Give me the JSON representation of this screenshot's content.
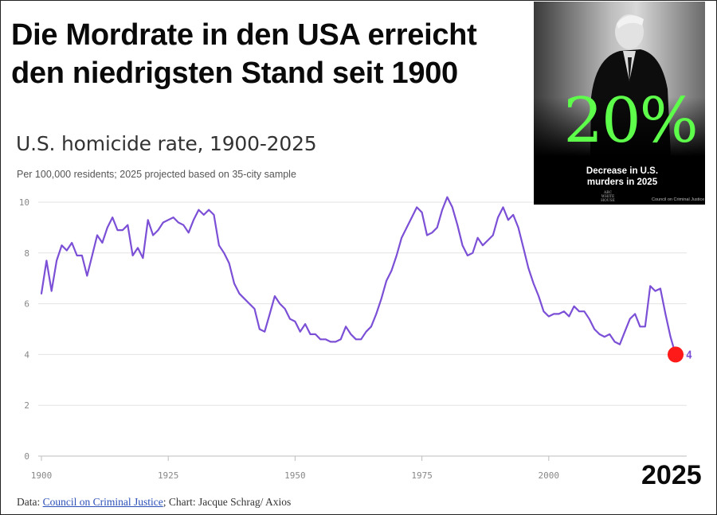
{
  "headline": {
    "line1": "Die Mordrate in den USA erreicht",
    "line2": "den niedrigsten Stand seit 1900"
  },
  "inset": {
    "percent": "20%",
    "caption_line1": "Decrease in U.S.",
    "caption_line2": "murders in 2025",
    "logo_line1": "ABC",
    "logo_line2": "WHITE HOUSE",
    "credit": "Council on Criminal Justice",
    "percent_color": "#5dff4a"
  },
  "year_callout": "2025",
  "footer": {
    "prefix": "Data: ",
    "source_link": "Council on Criminal Justice",
    "suffix": "; Chart: Jacque Schrag/ Axios"
  },
  "chart_data": {
    "type": "line",
    "title": "U.S. homicide rate, 1900-2025",
    "subtitle": "Per 100,000 residents; 2025 projected based on 35-city sample",
    "xlabel": "",
    "ylabel": "",
    "xlim": [
      1900,
      2025
    ],
    "ylim": [
      0,
      10
    ],
    "x_ticks": [
      1900,
      1925,
      1950,
      1975,
      2000
    ],
    "y_ticks": [
      0,
      2,
      4,
      6,
      8,
      10
    ],
    "grid": true,
    "line_color": "#7b4fd6",
    "highlight_color": "#ff1a1a",
    "series": [
      {
        "name": "Homicide rate",
        "x": [
          1900,
          1901,
          1902,
          1903,
          1904,
          1905,
          1906,
          1907,
          1908,
          1909,
          1910,
          1911,
          1912,
          1913,
          1914,
          1915,
          1916,
          1917,
          1918,
          1919,
          1920,
          1921,
          1922,
          1923,
          1924,
          1925,
          1926,
          1927,
          1928,
          1929,
          1930,
          1931,
          1932,
          1933,
          1934,
          1935,
          1936,
          1937,
          1938,
          1939,
          1940,
          1941,
          1942,
          1943,
          1944,
          1945,
          1946,
          1947,
          1948,
          1949,
          1950,
          1951,
          1952,
          1953,
          1954,
          1955,
          1956,
          1957,
          1958,
          1959,
          1960,
          1961,
          1962,
          1963,
          1964,
          1965,
          1966,
          1967,
          1968,
          1969,
          1970,
          1971,
          1972,
          1973,
          1974,
          1975,
          1976,
          1977,
          1978,
          1979,
          1980,
          1981,
          1982,
          1983,
          1984,
          1985,
          1986,
          1987,
          1988,
          1989,
          1990,
          1991,
          1992,
          1993,
          1994,
          1995,
          1996,
          1997,
          1998,
          1999,
          2000,
          2001,
          2002,
          2003,
          2004,
          2005,
          2006,
          2007,
          2008,
          2009,
          2010,
          2011,
          2012,
          2013,
          2014,
          2015,
          2016,
          2017,
          2018,
          2019,
          2020,
          2021,
          2022,
          2023,
          2024,
          2025
        ],
        "values": [
          6.4,
          7.7,
          6.5,
          7.7,
          8.3,
          8.1,
          8.4,
          7.9,
          7.9,
          7.1,
          7.9,
          8.7,
          8.4,
          9.0,
          9.4,
          8.9,
          8.9,
          9.1,
          7.9,
          8.2,
          7.8,
          9.3,
          8.7,
          8.9,
          9.2,
          9.3,
          9.4,
          9.2,
          9.1,
          8.8,
          9.3,
          9.7,
          9.5,
          9.7,
          9.5,
          8.3,
          8.0,
          7.6,
          6.8,
          6.4,
          6.2,
          6.0,
          5.8,
          5.0,
          4.9,
          5.6,
          6.3,
          6.0,
          5.8,
          5.4,
          5.3,
          4.9,
          5.2,
          4.8,
          4.8,
          4.6,
          4.6,
          4.5,
          4.5,
          4.6,
          5.1,
          4.8,
          4.6,
          4.6,
          4.9,
          5.1,
          5.6,
          6.2,
          6.9,
          7.3,
          7.9,
          8.6,
          9.0,
          9.4,
          9.8,
          9.6,
          8.7,
          8.8,
          9.0,
          9.7,
          10.2,
          9.8,
          9.1,
          8.3,
          7.9,
          8.0,
          8.6,
          8.3,
          8.5,
          8.7,
          9.4,
          9.8,
          9.3,
          9.5,
          9.0,
          8.2,
          7.4,
          6.8,
          6.3,
          5.7,
          5.5,
          5.6,
          5.6,
          5.7,
          5.5,
          5.9,
          5.7,
          5.7,
          5.4,
          5.0,
          4.8,
          4.7,
          4.8,
          4.5,
          4.4,
          4.9,
          5.4,
          5.6,
          5.1,
          5.1,
          6.7,
          6.5,
          6.6,
          5.6,
          4.7,
          4.0
        ]
      }
    ],
    "highlight": {
      "x": 2025,
      "value": 4.0,
      "label": "4"
    }
  }
}
